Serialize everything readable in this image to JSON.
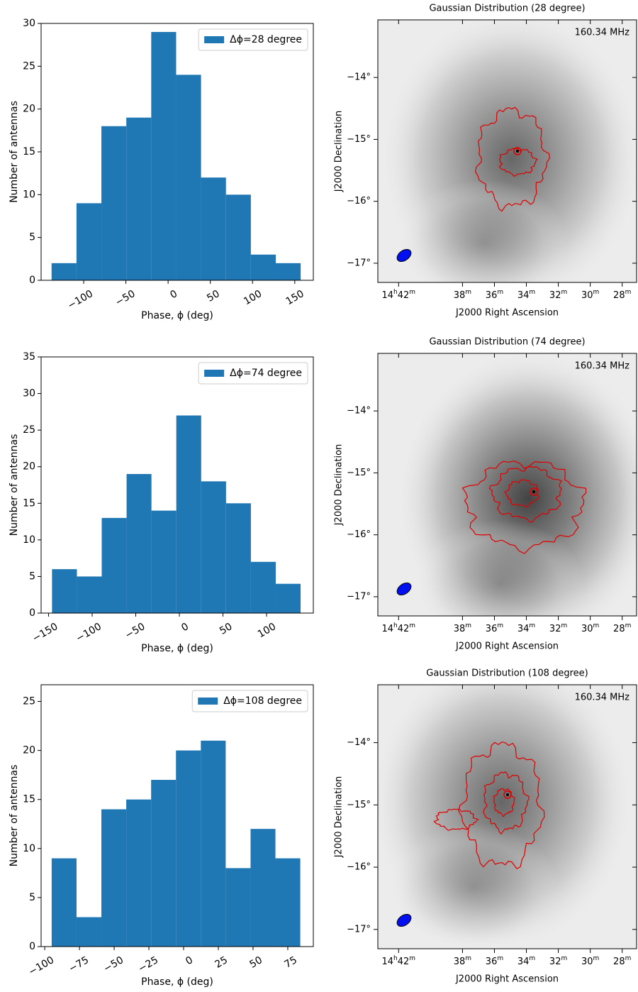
{
  "chart_data": [
    {
      "type": "histogram",
      "xlabel": "Phase, ϕ (deg)",
      "ylabel": "Number of antennas",
      "bins": [
        -138,
        -108.5,
        -79,
        -49.5,
        -20,
        9.5,
        39,
        68.5,
        98,
        127.5,
        157
      ],
      "series": [
        {
          "name": "Δϕ=28 degree",
          "color": "#1f77b4",
          "values": [
            2,
            9,
            18,
            19,
            29,
            24,
            12,
            10,
            3,
            2
          ]
        }
      ],
      "xlim": [
        -150.4,
        172
      ],
      "ylim": [
        0,
        30
      ],
      "xticks": [
        {
          "value": -100,
          "label": "−100"
        },
        {
          "value": -50,
          "label": "−50"
        },
        0,
        50,
        100,
        150
      ],
      "yticks": [
        0,
        5,
        10,
        15,
        20,
        25,
        30
      ],
      "legend": "upper right"
    },
    {
      "type": "image",
      "title": "Gaussian Distribution (28 degree)",
      "annotation": "160.34 MHz",
      "xlabel": "J2000 Right Ascension",
      "ylabel": "J2000 Declination",
      "xlim": [
        43.3,
        27.1
      ],
      "ylim": [
        -17.31,
        -13.07
      ],
      "xticks": [
        {
          "value": 42,
          "label": "14h42m"
        },
        {
          "value": 38,
          "label": "38m"
        },
        {
          "value": 36,
          "label": "36m"
        },
        {
          "value": 34,
          "label": "34m"
        },
        {
          "value": 32,
          "label": "32m"
        },
        {
          "value": 30,
          "label": "30m"
        },
        {
          "value": 28,
          "label": "28m"
        }
      ],
      "yticks": [
        {
          "value": -14,
          "label": "−14°"
        },
        {
          "value": -15,
          "label": "−15°"
        },
        {
          "value": -16,
          "label": "−16°"
        },
        {
          "value": -17,
          "label": "−17°"
        }
      ]
    },
    {
      "type": "histogram",
      "xlabel": "Phase, ϕ (deg)",
      "ylabel": "Number of antennas",
      "bins": [
        -146,
        -117.5,
        -89,
        -60.5,
        -32,
        -3.5,
        25,
        53.5,
        82,
        110.5,
        139
      ],
      "series": [
        {
          "name": "Δϕ=74 degree",
          "color": "#1f77b4",
          "values": [
            6,
            5,
            13,
            19,
            14,
            27,
            18,
            15,
            7,
            4
          ]
        }
      ],
      "xlim": [
        -158.5,
        153.6
      ],
      "ylim": [
        0,
        35
      ],
      "xticks": [
        {
          "value": -150,
          "label": "−150"
        },
        {
          "value": -100,
          "label": "−100"
        },
        {
          "value": -50,
          "label": "−50"
        },
        0,
        50,
        100
      ],
      "yticks": [
        0,
        5,
        10,
        15,
        20,
        25,
        30,
        35
      ],
      "legend": "upper right"
    },
    {
      "type": "image",
      "title": "Gaussian Distribution (74 degree)",
      "annotation": "160.34 MHz",
      "xlabel": "J2000 Right Ascension",
      "ylabel": "J2000 Declination",
      "xlim": [
        43.3,
        27.1
      ],
      "ylim": [
        -17.31,
        -13.07
      ],
      "xticks": [
        {
          "value": 42,
          "label": "14h42m"
        },
        {
          "value": 38,
          "label": "38m"
        },
        {
          "value": 36,
          "label": "36m"
        },
        {
          "value": 34,
          "label": "34m"
        },
        {
          "value": 32,
          "label": "32m"
        },
        {
          "value": 30,
          "label": "30m"
        },
        {
          "value": 28,
          "label": "28m"
        }
      ],
      "yticks": [
        {
          "value": -14,
          "label": "−14°"
        },
        {
          "value": -15,
          "label": "−15°"
        },
        {
          "value": -16,
          "label": "−16°"
        },
        {
          "value": -17,
          "label": "−17°"
        }
      ]
    },
    {
      "type": "histogram",
      "xlabel": "Phase, ϕ (deg)",
      "ylabel": "Number of antennas",
      "bins": [
        -95,
        -77.1,
        -59.2,
        -41.3,
        -23.4,
        -5.5,
        12.4,
        30.3,
        48.2,
        66.1,
        84
      ],
      "series": [
        {
          "name": "Δϕ=108 degree",
          "color": "#1f77b4",
          "values": [
            9,
            3,
            14,
            15,
            17,
            20,
            21,
            8,
            12,
            9
          ]
        }
      ],
      "xlim": [
        -102.6,
        93.4
      ],
      "ylim": [
        0,
        26.7
      ],
      "xticks": [
        {
          "value": -100,
          "label": "−100"
        },
        {
          "value": -75,
          "label": "−75"
        },
        {
          "value": -50,
          "label": "−50"
        },
        {
          "value": -25,
          "label": "−25"
        },
        0,
        25,
        50,
        75
      ],
      "yticks": [
        0,
        5,
        10,
        15,
        20,
        25
      ],
      "legend": "upper right"
    },
    {
      "type": "image",
      "title": "Gaussian Distribution (108 degree)",
      "annotation": "160.34 MHz",
      "xlabel": "J2000 Right Ascension",
      "ylabel": "J2000 Declination",
      "xlim": [
        43.3,
        27.1
      ],
      "ylim": [
        -17.31,
        -13.07
      ],
      "xticks": [
        {
          "value": 42,
          "label": "14h42m"
        },
        {
          "value": 38,
          "label": "38m"
        },
        {
          "value": 36,
          "label": "36m"
        },
        {
          "value": 34,
          "label": "34m"
        },
        {
          "value": 32,
          "label": "32m"
        },
        {
          "value": 30,
          "label": "30m"
        },
        {
          "value": 28,
          "label": "28m"
        }
      ],
      "yticks": [
        {
          "value": -14,
          "label": "−14°"
        },
        {
          "value": -15,
          "label": "−15°"
        },
        {
          "value": -16,
          "label": "−16°"
        },
        {
          "value": -17,
          "label": "−17°"
        }
      ]
    }
  ]
}
